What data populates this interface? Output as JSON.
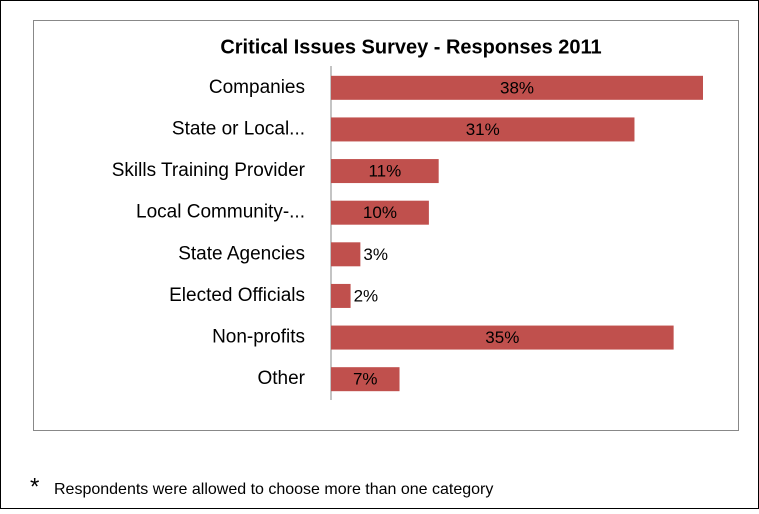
{
  "chart_data": {
    "type": "bar",
    "orientation": "horizontal",
    "title": "Critical Issues Survey - Responses 2011",
    "categories": [
      "Companies",
      "State or Local...",
      "Skills Training Provider",
      "Local Community-...",
      "State Agencies",
      "Elected Officials",
      "Non-profits",
      "Other"
    ],
    "values": [
      38,
      31,
      11,
      10,
      3,
      2,
      35,
      7
    ],
    "value_labels": [
      "38%",
      "31%",
      "11%",
      "10%",
      "3%",
      "2%",
      "35%",
      "7%"
    ],
    "color": "#c0504d"
  },
  "footnote": {
    "symbol": "*",
    "text": "Respondents were allowed to choose more than one category"
  }
}
